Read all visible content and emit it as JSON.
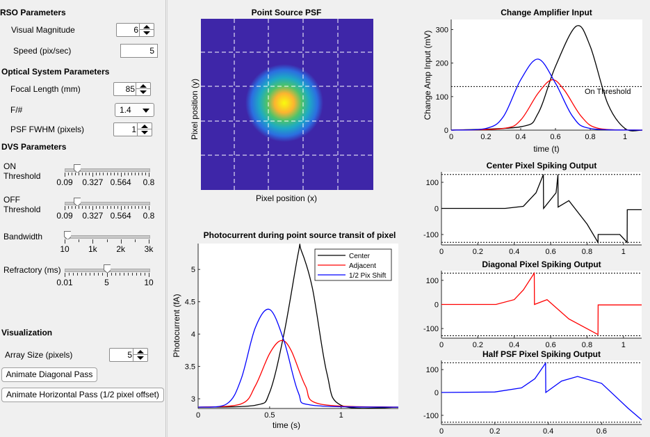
{
  "left": {
    "rso_title": "RSO Parameters",
    "visual_magnitude_label": "Visual Magnitude",
    "visual_magnitude_value": "6",
    "speed_label": "Speed (pix/sec)",
    "speed_value": "5",
    "optical_title": "Optical System Parameters",
    "focal_length_label": "Focal Length (mm)",
    "focal_length_value": "85",
    "fnum_label": "F/#",
    "fnum_value": "1.4",
    "psf_label": "PSF FWHM (pixels)",
    "psf_value": "1",
    "dvs_title": "DVS Parameters",
    "on_label_1": "ON",
    "on_label_2": "Threshold",
    "off_label_1": "OFF",
    "off_label_2": "Threshold",
    "bandwidth_label": "Bandwidth",
    "refractory_label": "Refractory (ms)",
    "threshold_ticks": [
      "0.09",
      "0.327",
      "0.564",
      "0.8"
    ],
    "bandwidth_ticks": [
      "10",
      "1k",
      "2k",
      "3k"
    ],
    "refractory_ticks": [
      "0.01",
      "5",
      "10"
    ],
    "on_threshold_level": 0.15,
    "off_threshold_level": 0.15,
    "bandwidth_level": 0.03,
    "refractory_level": 0.5,
    "vis_title": "Visualization",
    "array_size_label": "Array Size (pixels)",
    "array_size_value": "5",
    "animate_diagonal_label": "Animate Diagonal Pass",
    "animate_horizontal_label": "Animate Horizontal Pass (1/2 pixel offset)"
  },
  "psf_plot": {
    "title": "Point Source PSF",
    "xlabel": "Pixel position (x)",
    "ylabel": "Pixel position (y)"
  },
  "photocurrent_plot": {
    "title": "Photocurrent during point source transit of pixel",
    "xlabel": "time (s)",
    "ylabel": "Photocurrent (fA)",
    "legend": [
      "Center",
      "Adjacent",
      "1/2 Pix Shift"
    ],
    "xticks": [
      "0",
      "0.5",
      "1"
    ],
    "yticks": [
      "3",
      "3.5",
      "4",
      "4.5",
      "5"
    ]
  },
  "amp_plot": {
    "title": "Change Amplifier Input",
    "xlabel": "time (t)",
    "ylabel": "Change Amp Input (mV)",
    "annotation": "On Threshold",
    "xticks": [
      "0",
      "0.2",
      "0.4",
      "0.6",
      "0.8",
      "1"
    ],
    "yticks": [
      "0",
      "100",
      "200",
      "300"
    ]
  },
  "center_plot": {
    "title": "Center Pixel Spiking Output",
    "xticks": [
      "0",
      "0.2",
      "0.4",
      "0.6",
      "0.8",
      "1"
    ],
    "yticks": [
      "100",
      "0",
      "-100"
    ]
  },
  "diag_plot": {
    "title": "Diagonal Pixel Spiking Output",
    "xticks": [
      "0",
      "0.2",
      "0.4",
      "0.6",
      "0.8",
      "1"
    ],
    "yticks": [
      "100",
      "0",
      "-100"
    ]
  },
  "half_plot": {
    "title": "Half PSF Pixel Spiking Output",
    "xticks": [
      "0",
      "0.2",
      "0.4",
      "0.6"
    ],
    "yticks": [
      "100",
      "0",
      "-100"
    ]
  },
  "colors": {
    "center": "#000000",
    "adjacent": "#ff0000",
    "half": "#0000ff",
    "psf_bg": "#3e26a8"
  },
  "chart_data": [
    {
      "type": "line",
      "title": "Photocurrent during point source transit of pixel",
      "xlabel": "time (s)",
      "ylabel": "Photocurrent (fA)",
      "xlim": [
        0,
        1.4
      ],
      "ylim": [
        2.85,
        5.4
      ],
      "series": [
        {
          "name": "Center",
          "x": [
            0,
            0.4,
            0.5,
            0.6,
            0.7,
            0.72,
            0.8,
            0.9,
            1.0,
            1.4
          ],
          "values": [
            2.87,
            2.9,
            3.1,
            4.0,
            5.25,
            5.3,
            4.7,
            3.4,
            2.9,
            2.87
          ]
        },
        {
          "name": "Adjacent",
          "x": [
            0,
            0.3,
            0.4,
            0.5,
            0.58,
            0.65,
            0.75,
            0.85,
            1.4
          ],
          "values": [
            2.87,
            2.92,
            3.2,
            3.7,
            3.9,
            3.75,
            3.2,
            2.92,
            2.87
          ]
        },
        {
          "name": "1/2 Pix Shift",
          "x": [
            0,
            0.2,
            0.3,
            0.4,
            0.5,
            0.6,
            0.7,
            0.8,
            1.4
          ],
          "values": [
            2.87,
            2.92,
            3.3,
            4.1,
            4.38,
            3.9,
            3.1,
            2.9,
            2.87
          ]
        }
      ]
    },
    {
      "type": "line",
      "title": "Change Amplifier Input",
      "xlabel": "time (t)",
      "ylabel": "Change Amp Input (mV)",
      "xlim": [
        0,
        1.1
      ],
      "ylim": [
        0,
        330
      ],
      "threshold": 130,
      "series": [
        {
          "x": [
            0,
            0.4,
            0.5,
            0.6,
            0.72,
            0.8,
            0.9,
            1.0,
            1.1
          ],
          "values": [
            0,
            10,
            50,
            190,
            310,
            250,
            80,
            5,
            0
          ]
        },
        {
          "x": [
            0,
            0.3,
            0.4,
            0.5,
            0.58,
            0.65,
            0.75,
            0.85,
            1.1
          ],
          "values": [
            0,
            5,
            30,
            110,
            150,
            120,
            40,
            5,
            0
          ]
        },
        {
          "x": [
            0,
            0.2,
            0.3,
            0.4,
            0.5,
            0.6,
            0.7,
            0.8,
            1.1
          ],
          "values": [
            0,
            5,
            40,
            150,
            212,
            140,
            40,
            5,
            0
          ]
        }
      ]
    },
    {
      "type": "line",
      "title": "Center Pixel Spiking Output",
      "xlim": [
        0,
        1.1
      ],
      "ylim": [
        -140,
        140
      ],
      "series": [
        {
          "x": [
            0,
            0.35,
            0.45,
            0.52,
            0.56,
            0.561,
            0.63,
            0.64,
            0.641,
            0.7,
            0.8,
            0.86,
            0.861,
            0.98,
            1.02,
            1.021,
            1.1
          ],
          "values": [
            0,
            0,
            8,
            60,
            130,
            0,
            60,
            130,
            5,
            30,
            -60,
            -130,
            -100,
            -100,
            -130,
            -5,
            -5
          ]
        }
      ]
    },
    {
      "type": "line",
      "title": "Diagonal Pixel Spiking Output",
      "xlim": [
        0,
        1.1
      ],
      "ylim": [
        -140,
        140
      ],
      "series": [
        {
          "x": [
            0,
            0.3,
            0.4,
            0.45,
            0.51,
            0.511,
            0.58,
            0.7,
            0.86,
            0.861,
            1.1
          ],
          "values": [
            0,
            0,
            20,
            60,
            130,
            0,
            20,
            -60,
            -125,
            -2,
            -2
          ]
        }
      ]
    },
    {
      "type": "line",
      "title": "Half PSF Pixel Spiking Output",
      "xlim": [
        0,
        0.75
      ],
      "ylim": [
        -140,
        140
      ],
      "series": [
        {
          "x": [
            0,
            0.2,
            0.3,
            0.35,
            0.39,
            0.391,
            0.45,
            0.51,
            0.6,
            0.7,
            0.75
          ],
          "values": [
            0,
            2,
            20,
            60,
            128,
            0,
            50,
            70,
            40,
            -70,
            -120
          ]
        }
      ]
    }
  ]
}
